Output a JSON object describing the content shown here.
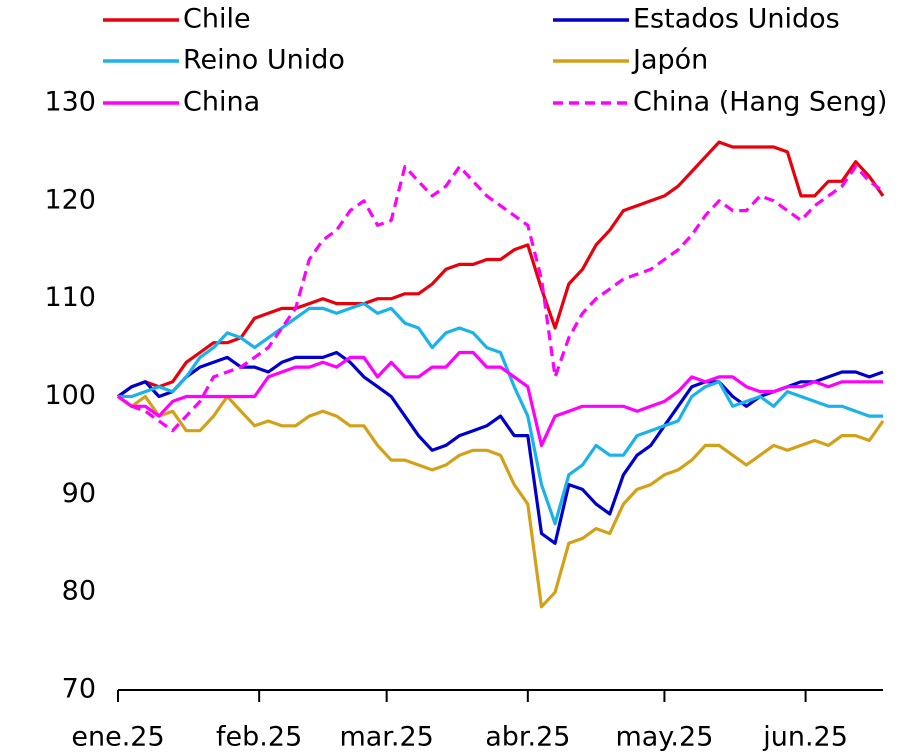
{
  "chart_data": {
    "type": "line",
    "x": [
      0,
      3,
      6,
      9,
      12,
      15,
      18,
      21,
      24,
      27,
      30,
      33,
      36,
      39,
      42,
      45,
      48,
      51,
      54,
      57,
      60,
      63,
      66,
      69,
      72,
      75,
      78,
      81,
      84,
      87,
      90,
      93,
      96,
      99,
      102,
      105,
      108,
      111,
      114,
      117,
      120,
      123,
      126,
      129,
      132,
      135,
      138,
      141,
      144,
      147,
      150,
      153,
      156,
      159,
      162,
      165,
      168
    ],
    "xlim": [
      0,
      168
    ],
    "xticks": [
      {
        "value": 0,
        "label": "ene.25"
      },
      {
        "value": 31,
        "label": "feb.25"
      },
      {
        "value": 59,
        "label": "mar.25"
      },
      {
        "value": 90,
        "label": "abr.25"
      },
      {
        "value": 120,
        "label": "may.25"
      },
      {
        "value": 151,
        "label": "jun.25"
      }
    ],
    "ylim": [
      70,
      130
    ],
    "yticks": [
      70,
      80,
      90,
      100,
      110,
      120,
      130
    ],
    "legend": "top",
    "series": [
      {
        "name": "Chile",
        "color": "#e8000b",
        "values": [
          100,
          101,
          101.5,
          101,
          101.5,
          103.5,
          104.5,
          105.5,
          105.5,
          106,
          108,
          108.5,
          109,
          109,
          109.5,
          110,
          109.5,
          109.5,
          109.5,
          110,
          110,
          110.5,
          110.5,
          111.5,
          113,
          113.5,
          113.5,
          114,
          114,
          115,
          115.5,
          111,
          107,
          111.5,
          113,
          115.5,
          117,
          119,
          119.5,
          120,
          120.5,
          121.5,
          123,
          124.5,
          126,
          125.5,
          125.5,
          125.5,
          125.5,
          125,
          120.5,
          120.5,
          122,
          122,
          124,
          122.5,
          120.5
        ]
      },
      {
        "name": "Estados Unidos",
        "color": "#0000cc",
        "values": [
          100,
          101,
          101.5,
          100,
          100.5,
          102,
          103,
          103.5,
          104,
          103,
          103,
          102.5,
          103.5,
          104,
          104,
          104,
          104.5,
          103.5,
          102,
          101,
          100,
          98,
          96,
          94.5,
          95,
          96,
          96.5,
          97,
          98,
          96,
          96,
          86,
          85,
          91,
          90.5,
          89,
          88,
          92,
          94,
          95,
          97,
          99,
          101,
          101.5,
          101.5,
          100,
          99,
          100,
          100.5,
          101,
          101.5,
          101.5,
          102,
          102.5,
          102.5,
          102,
          102.5
        ]
      },
      {
        "name": "Reino Unido",
        "color": "#1ab2e8",
        "values": [
          100,
          100,
          100.5,
          101,
          100.5,
          102,
          104,
          105,
          106.5,
          106,
          105,
          106,
          107,
          108,
          109,
          109,
          108.5,
          109,
          109.5,
          108.5,
          109,
          107.5,
          107,
          105,
          106.5,
          107,
          106.5,
          105,
          104.5,
          101,
          98,
          91,
          87,
          92,
          93,
          95,
          94,
          94,
          96,
          96.5,
          97,
          97.5,
          100,
          101,
          101.5,
          99,
          99.5,
          100,
          99,
          100.5,
          100,
          99.5,
          99,
          99,
          98.5,
          98,
          98
        ]
      },
      {
        "name": "Japón",
        "color": "#d4a017",
        "values": [
          100,
          99,
          100,
          98,
          98.5,
          96.5,
          96.5,
          98,
          100,
          98.5,
          97,
          97.5,
          97,
          97,
          98,
          98.5,
          98,
          97,
          97,
          95,
          93.5,
          93.5,
          93,
          92.5,
          93,
          94,
          94.5,
          94.5,
          94,
          91,
          89,
          78.5,
          80,
          85,
          85.5,
          86.5,
          86,
          89,
          90.5,
          91,
          92,
          92.5,
          93.5,
          95,
          95,
          94,
          93,
          94,
          95,
          94.5,
          95,
          95.5,
          95,
          96,
          96,
          95.5,
          97.5
        ]
      },
      {
        "name": "China",
        "color": "#ff00ff",
        "values": [
          100,
          99,
          99,
          98,
          99.5,
          100,
          100,
          100,
          100,
          100,
          100,
          102,
          102.5,
          103,
          103,
          103.5,
          103,
          104,
          104,
          102,
          103.5,
          102,
          102,
          103,
          103,
          104.5,
          104.5,
          103,
          103,
          102,
          101,
          95,
          98,
          98.5,
          99,
          99,
          99,
          99,
          98.5,
          99,
          99.5,
          100.5,
          102,
          101.5,
          102,
          102,
          101,
          100.5,
          100.5,
          101,
          101,
          101.5,
          101,
          101.5,
          101.5,
          101.5,
          101.5
        ]
      },
      {
        "name": "China (Hang Seng)",
        "color": "#ff00ff",
        "dashed": true,
        "values": [
          100,
          99,
          98.5,
          97.5,
          96.5,
          98,
          99.5,
          102,
          102.5,
          103,
          104,
          105,
          107,
          109,
          114,
          116,
          117,
          119,
          120,
          117.5,
          118,
          123.5,
          122,
          120.5,
          121.5,
          123.5,
          122,
          120.5,
          119.5,
          118.5,
          117.5,
          112,
          102,
          106,
          108.5,
          110,
          111,
          112,
          112.5,
          113,
          114,
          115,
          116.5,
          118.5,
          120,
          119,
          119,
          120.5,
          120,
          119,
          118,
          119.5,
          120.5,
          121.5,
          123.5,
          122,
          121
        ]
      }
    ]
  }
}
